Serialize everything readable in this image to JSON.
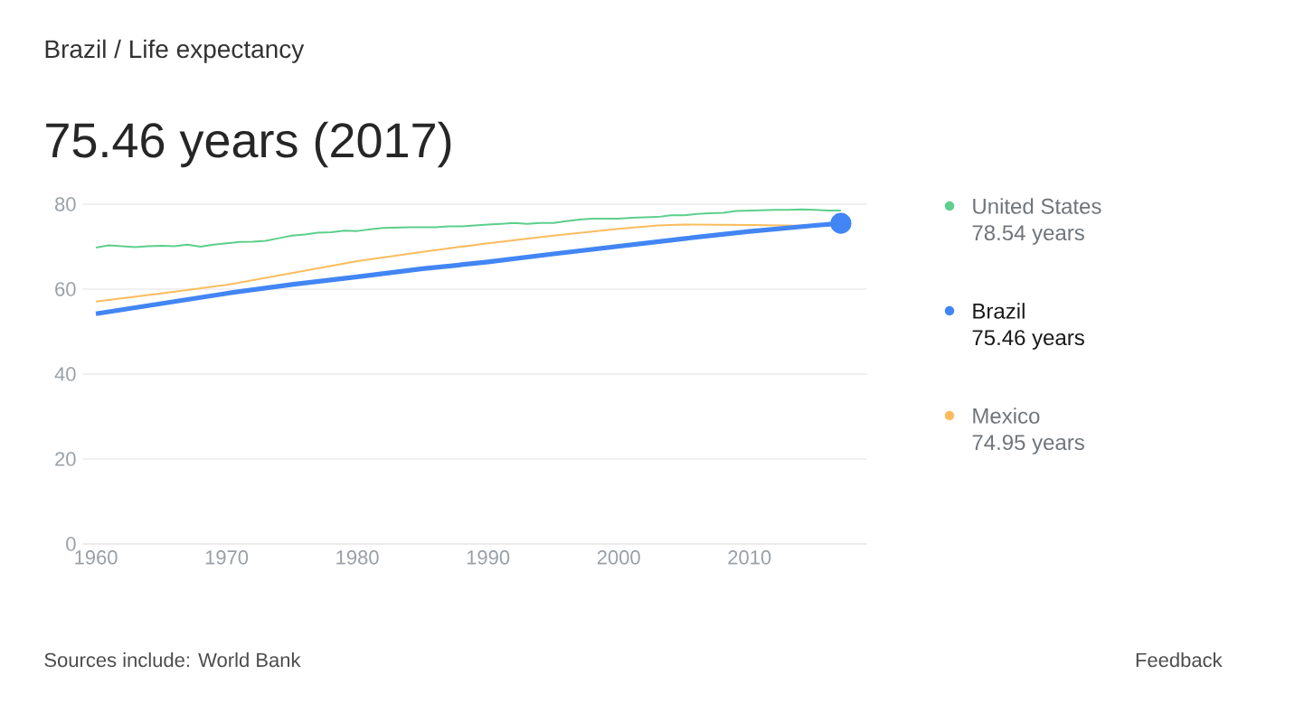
{
  "chart_data": {
    "type": "line",
    "subtitle": "Brazil / Life expectancy",
    "title": "75.46 years (2017)",
    "xlim": [
      1959,
      2019
    ],
    "xticks": [
      1960,
      1970,
      1980,
      1990,
      2000,
      2010
    ],
    "ylim": [
      0,
      80
    ],
    "yticks": [
      0,
      20,
      40,
      60,
      80
    ],
    "grid": "y",
    "legend": "right",
    "series": [
      {
        "name": "United States",
        "color": "#5ccf8c",
        "x": [
          1960,
          1961,
          1962,
          1963,
          1964,
          1965,
          1966,
          1967,
          1968,
          1969,
          1970,
          1971,
          1972,
          1973,
          1974,
          1975,
          1976,
          1977,
          1978,
          1979,
          1980,
          1981,
          1982,
          1983,
          1984,
          1985,
          1986,
          1987,
          1988,
          1989,
          1990,
          1991,
          1992,
          1993,
          1994,
          1995,
          1996,
          1997,
          1998,
          1999,
          2000,
          2001,
          2002,
          2003,
          2004,
          2005,
          2006,
          2007,
          2008,
          2009,
          2010,
          2011,
          2012,
          2013,
          2014,
          2015,
          2016,
          2017
        ],
        "values": [
          69.8,
          70.3,
          70.1,
          69.9,
          70.1,
          70.2,
          70.1,
          70.5,
          70.0,
          70.5,
          70.8,
          71.1,
          71.2,
          71.4,
          72.0,
          72.6,
          72.9,
          73.3,
          73.4,
          73.8,
          73.7,
          74.1,
          74.4,
          74.5,
          74.6,
          74.6,
          74.6,
          74.8,
          74.8,
          75.0,
          75.2,
          75.4,
          75.6,
          75.4,
          75.6,
          75.6,
          76.0,
          76.4,
          76.6,
          76.6,
          76.6,
          76.8,
          76.9,
          77.0,
          77.4,
          77.4,
          77.7,
          77.9,
          78.0,
          78.4,
          78.5,
          78.6,
          78.7,
          78.7,
          78.8,
          78.7,
          78.5,
          78.5
        ]
      },
      {
        "name": "Brazil",
        "color": "#4285f4",
        "x": [
          1960,
          1965,
          1970,
          1975,
          1980,
          1985,
          1990,
          1995,
          2000,
          2005,
          2010,
          2015,
          2017
        ],
        "values": [
          54.2,
          56.6,
          59.0,
          61.1,
          62.9,
          64.8,
          66.4,
          68.3,
          70.1,
          71.9,
          73.6,
          75.0,
          75.5
        ]
      },
      {
        "name": "Mexico",
        "color": "#fbbc5e",
        "x": [
          1960,
          1965,
          1970,
          1975,
          1980,
          1985,
          1990,
          1995,
          2000,
          2003,
          2005,
          2010,
          2015,
          2017
        ],
        "values": [
          57.1,
          59.0,
          61.0,
          63.8,
          66.6,
          68.8,
          70.8,
          72.6,
          74.2,
          75.0,
          75.2,
          75.1,
          74.9,
          75.0
        ]
      },
      {
        "type": "scatter",
        "color": "#4285f4",
        "marker": "circle",
        "x": [
          2017
        ],
        "values": [
          75.5
        ]
      }
    ],
    "annotations": [
      "78.54 years",
      "75.46 years",
      "74.95 years",
      "Sources include: World Bank",
      "Feedback"
    ]
  }
}
